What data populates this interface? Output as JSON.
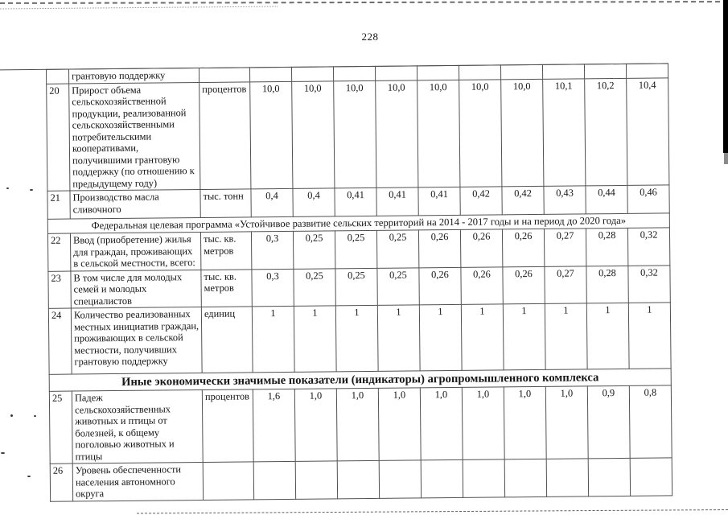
{
  "page": {
    "number": "228"
  },
  "table": {
    "rows": [
      {
        "type": "cont",
        "num": "",
        "name": "грантовую поддержку",
        "unit": "",
        "values": [
          "",
          "",
          "",
          "",
          "",
          "",
          "",
          "",
          "",
          ""
        ]
      },
      {
        "type": "data",
        "num": "20",
        "name": "Прирост объема сельскохозяйственной продукции, реализованной сельскохозяйственными потребительскими кооперативами, получившими грантовую поддержку (по отношению к предыдущему году)",
        "unit": "процентов",
        "values": [
          "10,0",
          "10,0",
          "10,0",
          "10,0",
          "10,0",
          "10,0",
          "10,0",
          "10,1",
          "10,2",
          "10,4"
        ]
      },
      {
        "type": "data",
        "num": "21",
        "name": "Производство масла сливочного",
        "unit": "тыс. тонн",
        "values": [
          "0,4",
          "0,4",
          "0,41",
          "0,41",
          "0,41",
          "0,42",
          "0,42",
          "0,43",
          "0,44",
          "0,46"
        ]
      },
      {
        "type": "section",
        "bold": false,
        "title": "Федеральная целевая программа «Устойчивое развитие сельских территорий на 2014 - 2017 годы и на период до 2020 года»"
      },
      {
        "type": "data",
        "num": "22",
        "name": "Ввод (приобретение) жилья для граждан, проживающих в сельской местности, всего:",
        "unit": "тыс. кв. метров",
        "values": [
          "0,3",
          "0,25",
          "0,25",
          "0,25",
          "0,26",
          "0,26",
          "0,26",
          "0,27",
          "0,28",
          "0,32"
        ]
      },
      {
        "type": "data",
        "num": "23",
        "name": "В том числе для молодых семей и молодых специалистов",
        "unit": "тыс. кв. метров",
        "values": [
          "0,3",
          "0,25",
          "0,25",
          "0,25",
          "0,26",
          "0,26",
          "0,26",
          "0,27",
          "0,28",
          "0,32"
        ]
      },
      {
        "type": "data",
        "num": "24",
        "name": "Количество реализованных местных инициатив граждан, проживающих в сельской местности, получивших грантовую поддержку",
        "unit": "единиц",
        "values": [
          "1",
          "1",
          "1",
          "1",
          "1",
          "1",
          "1",
          "1",
          "1",
          "1"
        ]
      },
      {
        "type": "section",
        "bold": true,
        "title": "Иные экономически значимые показатели (индикаторы) агропромышленного комплекса"
      },
      {
        "type": "data",
        "num": "25",
        "name": "Падеж сельскохозяйственных животных и птицы от болезней, к общему поголовью животных и птицы",
        "unit": "процентов",
        "values": [
          "1,6",
          "1,0",
          "1,0",
          "1,0",
          "1,0",
          "1,0",
          "1,0",
          "1,0",
          "0,9",
          "0,8"
        ]
      },
      {
        "type": "data",
        "num": "26",
        "name": "Уровень обеспеченности населения автономного округа",
        "unit": "",
        "values": [
          "",
          "",
          "",
          "",
          "",
          "",
          "",
          "",
          "",
          ""
        ]
      }
    ]
  }
}
